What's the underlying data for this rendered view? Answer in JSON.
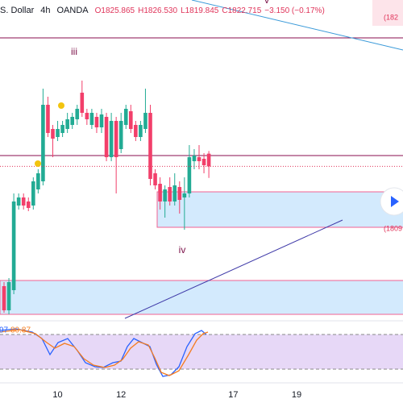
{
  "header": {
    "symbol": ".S. Dollar",
    "interval": "4h",
    "source": "OANDA",
    "open": "O1825.865",
    "high": "H1826.530",
    "low": "L1819.845",
    "close": "C1822.715",
    "change": "−3.150 (−0.17%)"
  },
  "chart_data": {
    "type": "candlestick",
    "categories": [
      null,
      null,
      null,
      null,
      null,
      null,
      null,
      null,
      null,
      null,
      null,
      "10",
      null,
      null,
      null,
      null,
      null,
      null,
      null,
      null,
      null,
      null,
      null,
      null,
      "12",
      null,
      null,
      null,
      null,
      null,
      null,
      null,
      null,
      null,
      null,
      null,
      null,
      null,
      null,
      null,
      null,
      null,
      null,
      null,
      null,
      null,
      null,
      "17",
      null,
      null,
      null,
      null,
      null,
      null,
      null,
      null,
      null,
      null,
      null,
      null,
      "19"
    ],
    "open": [
      1793,
      1787,
      1792,
      1813,
      1815,
      1814,
      1813,
      1817,
      1819,
      1838,
      1832,
      1830,
      1831,
      1832,
      1833,
      1834.4,
      1841,
      1836,
      1833,
      1835,
      1832.4,
      1835,
      1825,
      1834,
      1827,
      1833,
      1836.4,
      1833,
      1830,
      1832,
      1836,
      1821,
      1818.4,
      1814,
      1817.6,
      1814,
      1817.6,
      1815,
      1816,
      1824,
      1825,
      1824.6,
      1825.865,
      null,
      null,
      null,
      null,
      null,
      null,
      null,
      null,
      null,
      null,
      null,
      null,
      null,
      null,
      null,
      null,
      null,
      null
    ],
    "high": [
      1794,
      1795,
      1816,
      1816,
      1816,
      1815,
      1820,
      1822,
      1842,
      1840,
      1833,
      1834,
      1834,
      1836,
      1836,
      1838,
      1844,
      1837,
      1837,
      1836,
      1837,
      1836,
      1836,
      1835,
      1836,
      1838,
      1838,
      1834,
      1834,
      1842,
      1838,
      1822,
      1820,
      1818,
      1820,
      1821,
      1819,
      1820,
      1828,
      1827,
      1828,
      1826,
      1826.53,
      null,
      null,
      null,
      null,
      null,
      null,
      null,
      null,
      null,
      null,
      null,
      null,
      null,
      null,
      null,
      null,
      null,
      null
    ],
    "low": [
      1786.4,
      1786,
      1791,
      1812,
      1812,
      1811.6,
      1812,
      1816,
      1818,
      1830,
      1825,
      1829,
      1830,
      1831,
      1832,
      1833,
      1835,
      1833,
      1832,
      1831,
      1831,
      1824,
      1824,
      1816,
      1826,
      1832,
      1831,
      1829,
      1829,
      1831,
      1818,
      1817,
      1812,
      1810,
      1813,
      1813,
      1811,
      1807,
      1815,
      1822,
      1822,
      1821,
      1819.845,
      null,
      null,
      null,
      null,
      null,
      null,
      null,
      null,
      null,
      null,
      null,
      null,
      null,
      null,
      null,
      null,
      null,
      null
    ],
    "close": [
      1787,
      1794,
      1814,
      1815,
      1813,
      1812.4,
      1819,
      1821,
      1838,
      1831,
      1829.6,
      1832,
      1833,
      1834.4,
      1835,
      1837,
      1836,
      1834.4,
      1836,
      1832.4,
      1835.6,
      1825,
      1834,
      1825,
      1834,
      1837,
      1832,
      1830,
      1833,
      1836,
      1819.6,
      1818,
      1814,
      1817,
      1814,
      1818,
      1814.4,
      1816,
      1825,
      1825.4,
      1824,
      1823,
      1822.715,
      null,
      null,
      null,
      null,
      null,
      null,
      null,
      null,
      null,
      null,
      null,
      null,
      null,
      null,
      null,
      null,
      null,
      null
    ],
    "up_color": "#22ab94",
    "down_color": "#f23f6a",
    "ylim": [
      1785,
      1864
    ],
    "levels": [
      1854.6,
      1825.4
    ],
    "zones": [
      [
        1816.4,
        1807.6
      ],
      [
        1794.4,
        1786
      ]
    ],
    "annotations": {
      "wave_iii": "iii",
      "wave_iv": "iv",
      "wave_v": "v"
    },
    "right_labels": [
      "(182",
      "(1809"
    ],
    "oscillator_labels": [
      "97",
      "80.87"
    ]
  }
}
